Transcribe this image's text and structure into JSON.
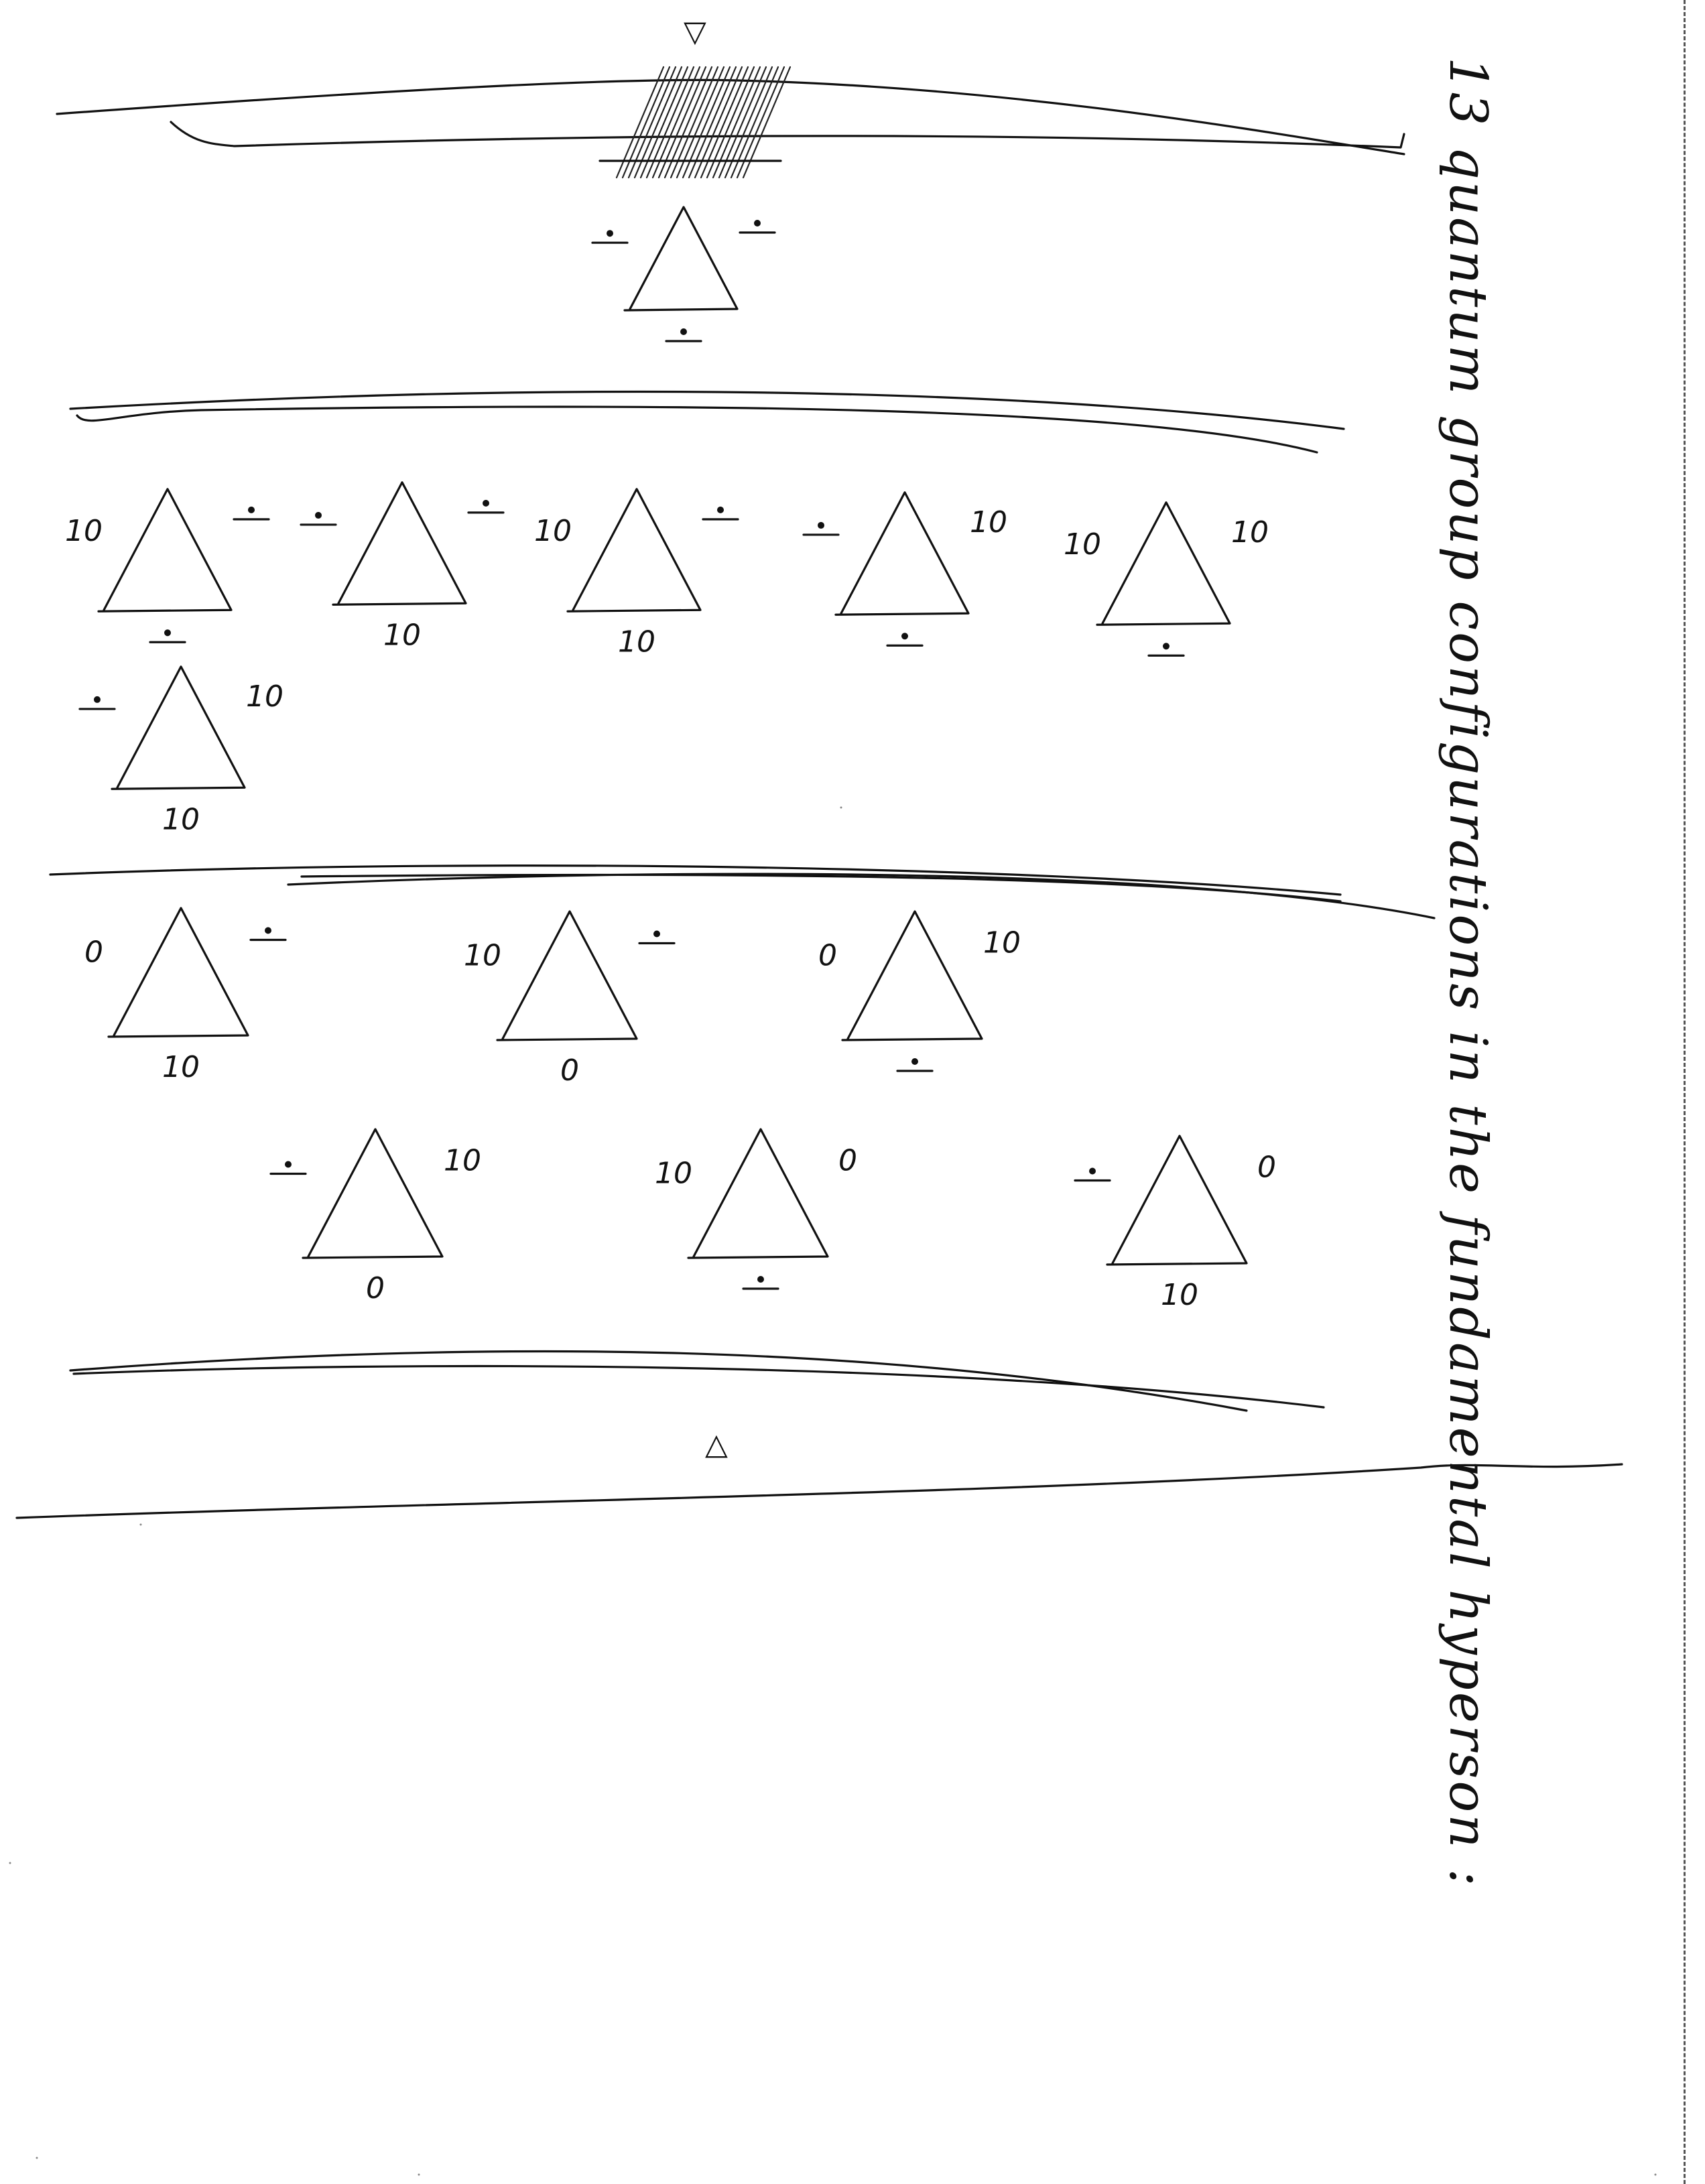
{
  "heading": "13 quantum group configurations in the fundamental hyperson :",
  "groups": [
    {
      "name": "group-1",
      "triangles": [
        {
          "left": "÷",
          "right": "÷",
          "bottom": "÷"
        }
      ]
    },
    {
      "name": "group-2",
      "triangles": [
        {
          "left": "10",
          "right": "÷",
          "bottom": "÷"
        },
        {
          "left": "÷",
          "right": "÷",
          "bottom": "10"
        },
        {
          "left": "10",
          "right": "÷",
          "bottom": "10"
        },
        {
          "left": "÷",
          "right": "10",
          "bottom": "÷"
        },
        {
          "left": "10",
          "right": "10",
          "bottom": "÷"
        },
        {
          "left": "÷",
          "right": "10",
          "bottom": "10"
        }
      ]
    },
    {
      "name": "group-3",
      "triangles": [
        {
          "left": "0",
          "right": "÷",
          "bottom": "10"
        },
        {
          "left": "10",
          "right": "÷",
          "bottom": "0"
        },
        {
          "left": "0",
          "right": "10",
          "bottom": "÷"
        },
        {
          "left": "÷",
          "right": "10",
          "bottom": "0"
        },
        {
          "left": "10",
          "right": "0",
          "bottom": "÷"
        },
        {
          "left": "÷",
          "right": "0",
          "bottom": "10"
        }
      ]
    }
  ],
  "markers": {
    "top": "▽",
    "bottom": "△"
  }
}
